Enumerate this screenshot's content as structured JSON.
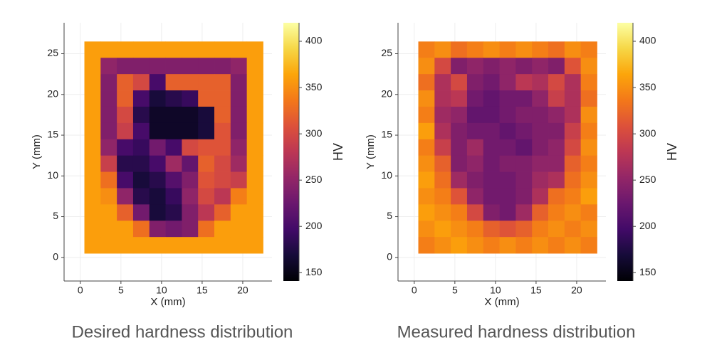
{
  "chart_data": [
    {
      "type": "heatmap",
      "caption": "Desired hardness distribution",
      "xlabel": "X (mm)",
      "ylabel": "Y (mm)",
      "xlim": [
        -2,
        23.6
      ],
      "ylim": [
        -2.9,
        28.8
      ],
      "xticks": [
        0,
        5,
        10,
        15,
        20
      ],
      "yticks": [
        0,
        5,
        10,
        15,
        20,
        25
      ],
      "grid": true,
      "x": [
        1.5,
        3.5,
        5.5,
        7.5,
        9.5,
        11.5,
        13.5,
        15.5,
        17.5,
        19.5,
        21.5
      ],
      "y": [
        25.5,
        23.5,
        21.5,
        19.5,
        17.5,
        15.5,
        13.5,
        11.5,
        9.5,
        7.5,
        5.5,
        3.5,
        1.5
      ],
      "values": [
        [
          360,
          360,
          360,
          360,
          360,
          360,
          360,
          360,
          360,
          360,
          360
        ],
        [
          360,
          250,
          240,
          240,
          240,
          240,
          240,
          240,
          240,
          250,
          360
        ],
        [
          360,
          240,
          320,
          300,
          200,
          320,
          320,
          320,
          320,
          240,
          360
        ],
        [
          360,
          240,
          320,
          200,
          170,
          180,
          190,
          320,
          320,
          240,
          360
        ],
        [
          360,
          240,
          300,
          180,
          160,
          160,
          160,
          170,
          320,
          240,
          360
        ],
        [
          360,
          240,
          290,
          200,
          160,
          160,
          160,
          170,
          310,
          240,
          360
        ],
        [
          360,
          250,
          200,
          190,
          230,
          200,
          300,
          310,
          310,
          250,
          360
        ],
        [
          360,
          290,
          180,
          180,
          200,
          260,
          220,
          320,
          300,
          260,
          360
        ],
        [
          360,
          330,
          200,
          170,
          180,
          210,
          240,
          310,
          300,
          290,
          360
        ],
        [
          360,
          350,
          250,
          180,
          170,
          190,
          250,
          300,
          280,
          340,
          360
        ],
        [
          360,
          360,
          320,
          230,
          170,
          180,
          240,
          280,
          320,
          360,
          360
        ],
        [
          360,
          360,
          360,
          330,
          240,
          230,
          240,
          330,
          360,
          360,
          360
        ],
        [
          360,
          360,
          360,
          360,
          360,
          360,
          360,
          360,
          360,
          360,
          360
        ]
      ],
      "colormap": "inferno",
      "colorbar": {
        "label": "HV",
        "clim": [
          141,
          420
        ],
        "ticks": [
          150,
          200,
          250,
          300,
          350,
          400
        ]
      }
    },
    {
      "type": "heatmap",
      "caption": "Measured hardness distribution",
      "xlabel": "X (mm)",
      "ylabel": "Y (mm)",
      "xlim": [
        -2,
        23.6
      ],
      "ylim": [
        -2.9,
        28.8
      ],
      "xticks": [
        0,
        5,
        10,
        15,
        20
      ],
      "yticks": [
        0,
        5,
        10,
        15,
        20,
        25
      ],
      "grid": true,
      "x": [
        1.5,
        3.5,
        5.5,
        7.5,
        9.5,
        11.5,
        13.5,
        15.5,
        17.5,
        19.5,
        21.5
      ],
      "y": [
        25.5,
        23.5,
        21.5,
        19.5,
        17.5,
        15.5,
        13.5,
        11.5,
        9.5,
        7.5,
        5.5,
        3.5,
        1.5
      ],
      "values": [
        [
          340,
          350,
          330,
          340,
          350,
          340,
          350,
          340,
          330,
          350,
          340
        ],
        [
          350,
          300,
          240,
          250,
          240,
          250,
          240,
          250,
          240,
          310,
          350
        ],
        [
          330,
          270,
          300,
          240,
          230,
          250,
          280,
          270,
          300,
          270,
          340
        ],
        [
          350,
          270,
          280,
          230,
          220,
          230,
          230,
          250,
          290,
          270,
          330
        ],
        [
          340,
          260,
          250,
          220,
          220,
          230,
          240,
          240,
          250,
          270,
          350
        ],
        [
          360,
          270,
          240,
          230,
          230,
          220,
          230,
          240,
          240,
          290,
          340
        ],
        [
          340,
          290,
          240,
          260,
          230,
          230,
          220,
          240,
          250,
          300,
          350
        ],
        [
          350,
          320,
          240,
          250,
          230,
          240,
          240,
          250,
          250,
          320,
          340
        ],
        [
          360,
          330,
          260,
          240,
          230,
          230,
          240,
          260,
          270,
          330,
          350
        ],
        [
          350,
          340,
          310,
          250,
          230,
          230,
          240,
          270,
          330,
          340,
          360
        ],
        [
          360,
          350,
          340,
          300,
          240,
          230,
          260,
          320,
          340,
          350,
          340
        ],
        [
          350,
          360,
          350,
          340,
          320,
          310,
          320,
          340,
          350,
          340,
          350
        ],
        [
          340,
          350,
          360,
          350,
          340,
          350,
          340,
          350,
          340,
          350,
          340
        ]
      ],
      "colormap": "inferno",
      "colorbar": {
        "label": "HV",
        "clim": [
          141,
          420
        ],
        "ticks": [
          150,
          200,
          250,
          300,
          350,
          400
        ]
      }
    }
  ]
}
